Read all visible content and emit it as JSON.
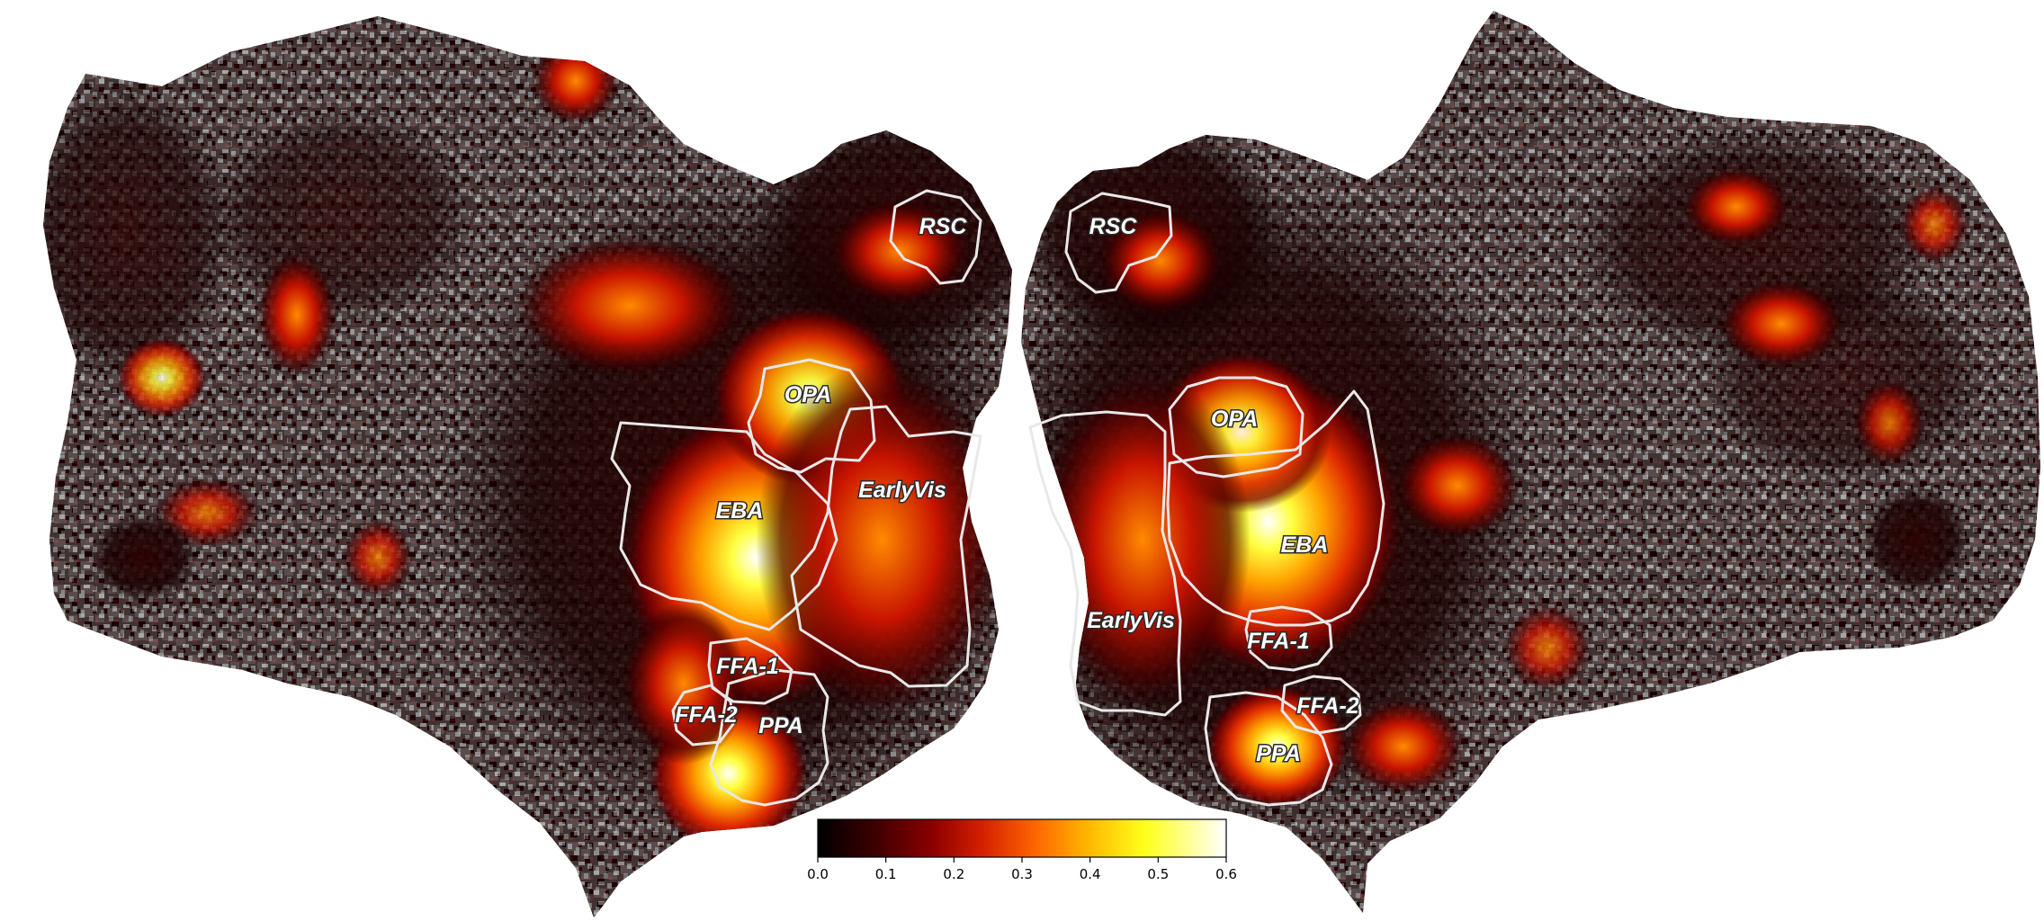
{
  "figure": {
    "colors": {
      "background": "#ffffff",
      "cortex_gyri": "#a6a6a6",
      "cortex_sulci": "#6e6e6e",
      "outline": "#e8e8e8",
      "colormap": [
        "#000000",
        "#3d0000",
        "#8b0000",
        "#d41e00",
        "#ff6a00",
        "#ffb600",
        "#ffff1a",
        "#ffffff"
      ]
    },
    "colorbar": {
      "colormap": "hot",
      "ticks": [
        "0.0",
        "0.1",
        "0.2",
        "0.3",
        "0.4",
        "0.5",
        "0.6"
      ],
      "min": 0.0,
      "max": 0.6
    },
    "left_hemisphere": {
      "labels": {
        "rsc": "RSC",
        "opa": "OPA",
        "earlyvis": "EarlyVis",
        "eba": "EBA",
        "ffa1": "FFA-1",
        "ffa2": "FFA-2",
        "ppa": "PPA"
      }
    },
    "right_hemisphere": {
      "labels": {
        "rsc": "RSC",
        "opa": "OPA",
        "earlyvis": "EarlyVis",
        "eba": "EBA",
        "ffa1": "FFA-1",
        "ffa2": "FFA-2",
        "ppa": "PPA"
      }
    }
  }
}
